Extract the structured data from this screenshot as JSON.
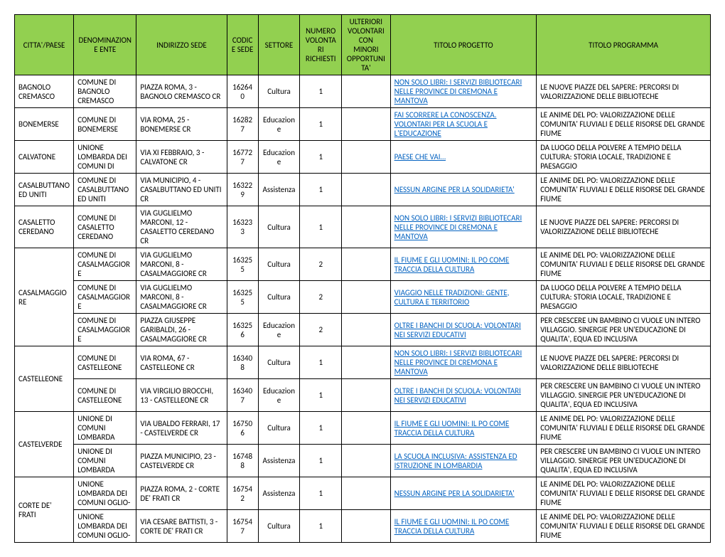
{
  "headers": [
    "CITTA'/PAESE",
    "DENOMINAZIONE ENTE",
    "INDIRIZZO SEDE",
    "CODICE SEDE",
    "SETTORE",
    "NUMERO VOLONTARI RICHIESTI",
    "ULTERIORI VOLONTARI CON MINORI OPPORTUNITA'",
    "TITOLO PROGETTO",
    "TITOLO PROGRAMMA"
  ],
  "header_bg": "#92d050",
  "link_color": "#0563c1",
  "groups": [
    {
      "citta": "BAGNOLO CREMASCO",
      "rows": [
        {
          "ente": "COMUNE DI BAGNOLO CREMASCO",
          "indirizzo": "PIAZZA ROMA, 3 - BAGNOLO CREMASCO CR",
          "codice": "162640",
          "settore": "Cultura",
          "volontari": "1",
          "ulteriori": "",
          "progetto": "NON SOLO LIBRI: I SERVIZI BIBLIOTECARI NELLE PROVINCE DI CREMONA E MANTOVA",
          "programma": "LE NUOVE PIAZZE DEL SAPERE: PERCORSI DI VALORIZZAZIONE DELLE BIBLIOTECHE"
        }
      ]
    },
    {
      "citta": "BONEMERSE",
      "rows": [
        {
          "ente": "COMUNE DI BONEMERSE",
          "indirizzo": "VIA ROMA, 25 - BONEMERSE CR",
          "codice": "162827",
          "settore": "Educazione",
          "volontari": "1",
          "ulteriori": "",
          "progetto": "FAI SCORRERE LA CONOSCENZA. VOLONTARI PER LA SCUOLA E L'EDUCAZIONE",
          "programma": "LE ANIME DEL PO: VALORIZZAZIONE DELLE COMUNITA' FLUVIALI E DELLE RISORSE DEL GRANDE FIUME"
        }
      ]
    },
    {
      "citta": "CALVATONE",
      "rows": [
        {
          "ente": "UNIONE LOMBARDA DEI COMUNI DI",
          "indirizzo": "VIA XI FEBBRAIO, 3 - CALVATONE CR",
          "codice": "167727",
          "settore": "Educazione",
          "volontari": "1",
          "ulteriori": "",
          "progetto": "PAESE CHE VAI…",
          "programma": "DA LUOGO DELLA POLVERE A TEMPIO DELLA CULTURA: STORIA LOCALE, TRADIZIONE E PAESAGGIO"
        }
      ]
    },
    {
      "citta": "CASALBUTTANO ED UNITI",
      "rows": [
        {
          "ente": "COMUNE DI CASALBUTTANO ED UNITI",
          "indirizzo": "VIA MUNICIPIO, 4 - CASALBUTTANO ED UNITI CR",
          "codice": "163229",
          "settore": "Assistenza",
          "volontari": "1",
          "ulteriori": "",
          "progetto": "NESSUN ARGINE PER LA SOLIDARIETA'",
          "programma": "LE ANIME DEL PO: VALORIZZAZIONE DELLE COMUNITA' FLUVIALI E DELLE RISORSE DEL GRANDE FIUME"
        }
      ]
    },
    {
      "citta": "CASALETTO CEREDANO",
      "rows": [
        {
          "ente": "COMUNE DI CASALETTO CEREDANO",
          "indirizzo": "VIA GUGLIELMO MARCONI, 12 - CASALETTO CEREDANO CR",
          "codice": "163233",
          "settore": "Cultura",
          "volontari": "1",
          "ulteriori": "",
          "progetto": "NON SOLO LIBRI: I SERVIZI BIBLIOTECARI NELLE PROVINCE DI CREMONA E MANTOVA",
          "programma": "LE NUOVE PIAZZE DEL SAPERE: PERCORSI DI VALORIZZAZIONE DELLE BIBLIOTECHE"
        }
      ]
    },
    {
      "citta": "CASALMAGGIORE",
      "rows": [
        {
          "ente": "COMUNE DI CASALMAGGIORE",
          "indirizzo": "VIA GUGLIELMO MARCONI, 8 - CASALMAGGIORE CR",
          "codice": "163255",
          "settore": "Cultura",
          "volontari": "2",
          "ulteriori": "",
          "progetto": "IL FIUME E GLI UOMINI: IL PO COME TRACCIA DELLA CULTURA",
          "programma": "LE ANIME DEL PO: VALORIZZAZIONE DELLE COMUNITA' FLUVIALI E DELLE RISORSE DEL GRANDE FIUME"
        },
        {
          "ente": "COMUNE DI CASALMAGGIORE",
          "indirizzo": "VIA GUGLIELMO MARCONI, 8 - CASALMAGGIORE CR",
          "codice": "163255",
          "settore": "Cultura",
          "volontari": "2",
          "ulteriori": "",
          "progetto": "VIAGGIO NELLE TRADIZIONI: GENTE, CULTURA E TERRITORIO",
          "programma": "DA LUOGO DELLA POLVERE A TEMPIO DELLA CULTURA: STORIA LOCALE, TRADIZIONE E PAESAGGIO"
        },
        {
          "ente": "COMUNE DI CASALMAGGIORE",
          "indirizzo": "PIAZZA GIUSEPPE GARIBALDI, 26 - CASALMAGGIORE CR",
          "codice": "163256",
          "settore": "Educazione",
          "volontari": "2",
          "ulteriori": "",
          "progetto": "OLTRE I BANCHI DI SCUOLA: VOLONTARI NEI SERVIZI EDUCATIVI",
          "programma": "PER CRESCERE UN BAMBINO CI VUOLE UN INTERO VILLAGGIO. SINERGIE PER UN'EDUCAZIONE DI QUALITA', EQUA ED INCLUSIVA"
        }
      ]
    },
    {
      "citta": "CASTELLEONE",
      "rows": [
        {
          "ente": "COMUNE DI CASTELLEONE",
          "indirizzo": "VIA ROMA, 67 - CASTELLEONE CR",
          "codice": "163408",
          "settore": "Cultura",
          "volontari": "1",
          "ulteriori": "",
          "progetto": "NON SOLO LIBRI: I SERVIZI BIBLIOTECARI NELLE PROVINCE DI CREMONA E MANTOVA",
          "programma": "LE NUOVE PIAZZE DEL SAPERE: PERCORSI DI VALORIZZAZIONE DELLE BIBLIOTECHE"
        },
        {
          "ente": "COMUNE DI CASTELLEONE",
          "indirizzo": "VIA VIRGILIO BROCCHI, 13 - CASTELLEONE CR",
          "codice": "163407",
          "settore": "Educazione",
          "volontari": "1",
          "ulteriori": "",
          "progetto": "OLTRE I BANCHI DI SCUOLA: VOLONTARI NEI SERVIZI EDUCATIVI",
          "programma": "PER CRESCERE UN BAMBINO CI VUOLE UN INTERO VILLAGGIO. SINERGIE PER UN'EDUCAZIONE DI QUALITA', EQUA ED INCLUSIVA"
        }
      ]
    },
    {
      "citta": "CASTELVERDE",
      "rows": [
        {
          "ente": "UNIONE DI COMUNI LOMBARDA",
          "indirizzo": "VIA UBALDO FERRARI, 17 - CASTELVERDE CR",
          "codice": "167506",
          "settore": "Cultura",
          "volontari": "1",
          "ulteriori": "",
          "progetto": "IL FIUME E GLI UOMINI: IL PO COME TRACCIA DELLA CULTURA",
          "programma": "LE ANIME DEL PO: VALORIZZAZIONE DELLE COMUNITA' FLUVIALI E DELLE RISORSE DEL GRANDE FIUME"
        },
        {
          "ente": "UNIONE DI COMUNI LOMBARDA",
          "indirizzo": "PIAZZA MUNICIPIO, 23 - CASTELVERDE CR",
          "codice": "167488",
          "settore": "Assistenza",
          "volontari": "1",
          "ulteriori": "",
          "progetto": "LA SCUOLA INCLUSIVA: ASSISTENZA ED ISTRUZIONE IN LOMBARDIA",
          "programma": "PER CRESCERE UN BAMBINO CI VUOLE UN INTERO VILLAGGIO. SINERGIE PER UN'EDUCAZIONE DI QUALITA', EQUA ED INCLUSIVA"
        }
      ]
    },
    {
      "citta": "CORTE DE' FRATI",
      "rows": [
        {
          "ente": "UNIONE LOMBARDA DEI COMUNI OGLIO-",
          "indirizzo": "PIAZZA ROMA, 2 - CORTE DE' FRATI CR",
          "codice": "167542",
          "settore": "Assistenza",
          "volontari": "1",
          "ulteriori": "",
          "progetto": "NESSUN ARGINE PER LA SOLIDARIETA'",
          "programma": "LE ANIME DEL PO: VALORIZZAZIONE DELLE COMUNITA' FLUVIALI E DELLE RISORSE DEL GRANDE FIUME"
        },
        {
          "ente": "UNIONE LOMBARDA DEI COMUNI OGLIO-",
          "indirizzo": "VIA CESARE BATTISTI, 3 - CORTE DE' FRATI CR",
          "codice": "167547",
          "settore": "Cultura",
          "volontari": "1",
          "ulteriori": "",
          "progetto": "IL FIUME E GLI UOMINI: IL PO COME TRACCIA DELLA CULTURA",
          "programma": "LE ANIME DEL PO: VALORIZZAZIONE DELLE COMUNITA' FLUVIALI E DELLE RISORSE DEL GRANDE FIUME"
        }
      ]
    }
  ]
}
